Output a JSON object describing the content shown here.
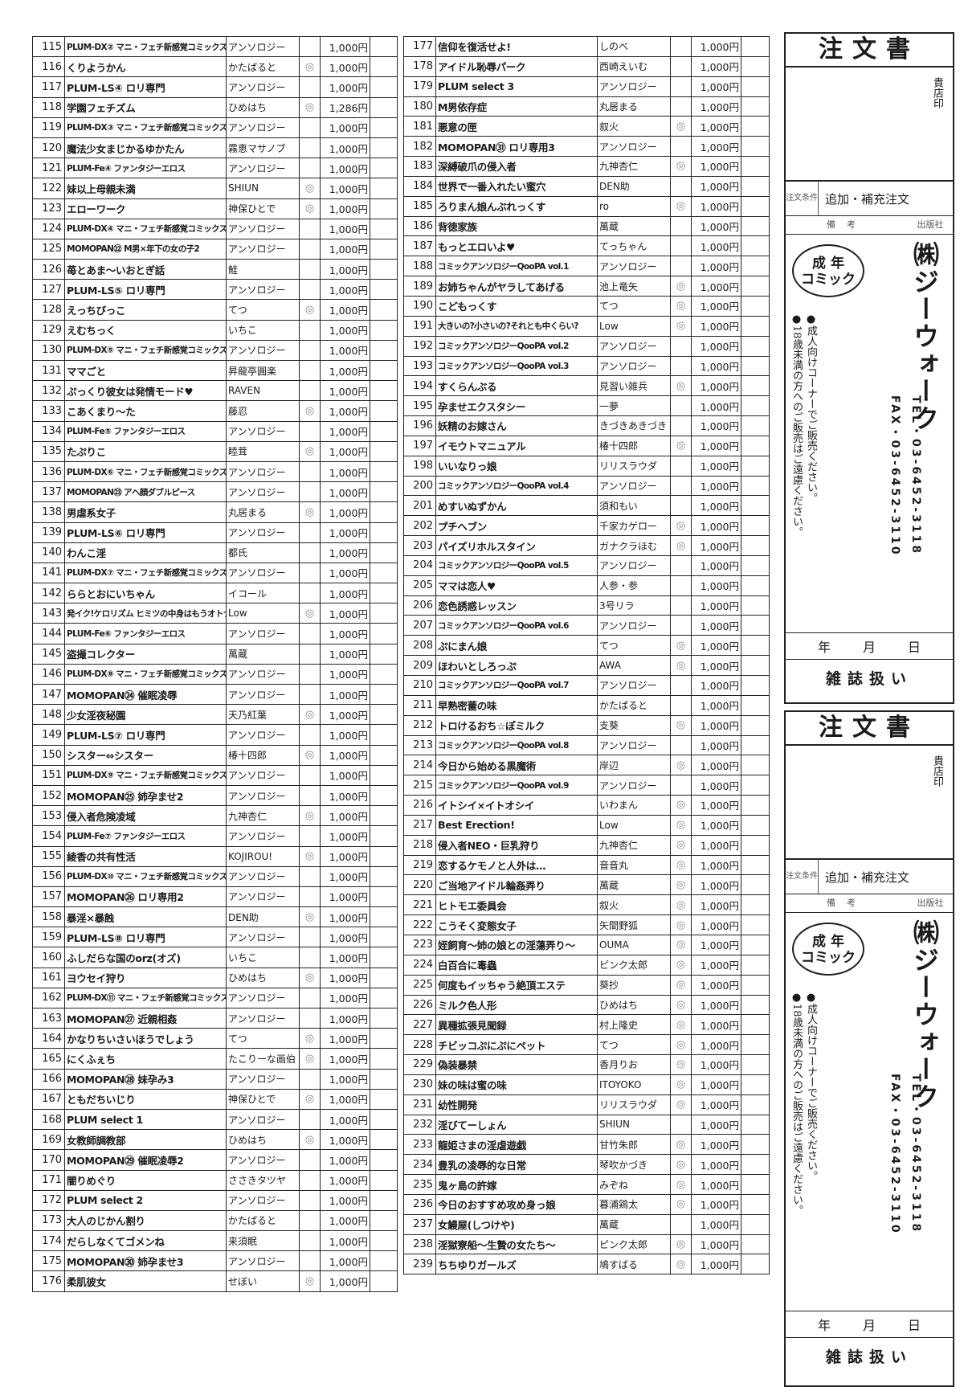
{
  "left_table": [
    [
      "115",
      "PLUM-DX② マニ・フェチ新感覚コミックス",
      "アンソロジー",
      "",
      "1,000円"
    ],
    [
      "116",
      "くりようかん",
      "かたぱると",
      "◎",
      "1,000円"
    ],
    [
      "117",
      "PLUM-LS④ ロリ専門",
      "アンソロジー",
      "",
      "1,000円"
    ],
    [
      "118",
      "学園フェチズム",
      "ひめはち",
      "◎",
      "1,286円"
    ],
    [
      "119",
      "PLUM-DX③ マニ・フェチ新感覚コミックス",
      "アンソロジー",
      "",
      "1,000円"
    ],
    [
      "120",
      "魔法少女まじかるゆかたん",
      "霧恵マサノブ",
      "",
      "1,000円"
    ],
    [
      "121",
      "PLUM-Fe④ ファンタジーエロス",
      "アンソロジー",
      "",
      "1,000円"
    ],
    [
      "122",
      "妹以上母親未満",
      "SHIUN",
      "◎",
      "1,000円"
    ],
    [
      "123",
      "エローワーク",
      "神保ひとで",
      "◎",
      "1,000円"
    ],
    [
      "124",
      "PLUM-DX④ マニ・フェチ新感覚コミックス",
      "アンソロジー",
      "",
      "1,000円"
    ],
    [
      "125",
      "MOMOPAN㉒ M男×年下の女の子2",
      "アンソロジー",
      "",
      "1,000円"
    ],
    [
      "126",
      "苺とあま～いおとぎ話",
      "鮭",
      "",
      "1,000円"
    ],
    [
      "127",
      "PLUM-LS⑤ ロリ専門",
      "アンソロジー",
      "",
      "1,000円"
    ],
    [
      "128",
      "えっちびっこ",
      "てつ",
      "◎",
      "1,000円"
    ],
    [
      "129",
      "えむちっく",
      "いちこ",
      "",
      "1,000円"
    ],
    [
      "130",
      "PLUM-DX⑤ マニ・フェチ新感覚コミックス",
      "アンソロジー",
      "",
      "1,000円"
    ],
    [
      "131",
      "ママごと",
      "昇龍亭圓楽",
      "",
      "1,000円"
    ],
    [
      "132",
      "ぷっくり彼女は発情モード♥",
      "RAVEN",
      "",
      "1,000円"
    ],
    [
      "133",
      "こあくまり～た",
      "藤忍",
      "◎",
      "1,000円"
    ],
    [
      "134",
      "PLUM-Fe⑤ ファンタジーエロス",
      "アンソロジー",
      "",
      "1,000円"
    ],
    [
      "135",
      "たぷりこ",
      "睦茸",
      "◎",
      "1,000円"
    ],
    [
      "136",
      "PLUM-DX⑥ マニ・フェチ新感覚コミックス",
      "アンソロジー",
      "",
      "1,000円"
    ],
    [
      "137",
      "MOMOPAN㉓ アヘ顔ダブルピース",
      "アンソロジー",
      "",
      "1,000円"
    ],
    [
      "138",
      "男虐系女子",
      "丸居まる",
      "◎",
      "1,000円"
    ],
    [
      "139",
      "PLUM-LS⑥ ロリ専門",
      "アンソロジー",
      "",
      "1,000円"
    ],
    [
      "140",
      "わんこ淫",
      "都氏",
      "",
      "1,000円"
    ],
    [
      "141",
      "PLUM-DX⑦ マニ・フェチ新感覚コミックス",
      "アンソロジー",
      "",
      "1,000円"
    ],
    [
      "142",
      "ららとおにいちゃん",
      "イコール",
      "",
      "1,000円"
    ],
    [
      "143",
      "発イク!ケロリズム ヒミツの中身はもうオトナ",
      "Low",
      "◎",
      "1,000円"
    ],
    [
      "144",
      "PLUM-Fe⑥ ファンタジーエロス",
      "アンソロジー",
      "",
      "1,000円"
    ],
    [
      "145",
      "盗撮コレクター",
      "萬蔵",
      "",
      "1,000円"
    ],
    [
      "146",
      "PLUM-DX⑧ マニ・フェチ新感覚コミックス",
      "アンソロジー",
      "",
      "1,000円"
    ],
    [
      "147",
      "MOMOPAN㉔ 催眠凌辱",
      "アンソロジー",
      "",
      "1,000円"
    ],
    [
      "148",
      "少女淫夜秘園",
      "天乃紅葉",
      "◎",
      "1,000円"
    ],
    [
      "149",
      "PLUM-LS⑦ ロリ専門",
      "アンソロジー",
      "",
      "1,000円"
    ],
    [
      "150",
      "シスター⇔シスター",
      "椿十四郎",
      "◎",
      "1,000円"
    ],
    [
      "151",
      "PLUM-DX⑨ マニ・フェチ新感覚コミックス",
      "アンソロジー",
      "",
      "1,000円"
    ],
    [
      "152",
      "MOMOPAN㉕ 姉孕ませ2",
      "アンソロジー",
      "",
      "1,000円"
    ],
    [
      "153",
      "侵入者危険凌域",
      "九神杏仁",
      "◎",
      "1,000円"
    ],
    [
      "154",
      "PLUM-Fe⑦ ファンタジーエロス",
      "アンソロジー",
      "",
      "1,000円"
    ],
    [
      "155",
      "綾香の共有性活",
      "KOJIROU!",
      "◎",
      "1,000円"
    ],
    [
      "156",
      "PLUM-DX⑩ マニ・フェチ新感覚コミックス",
      "アンソロジー",
      "",
      "1,000円"
    ],
    [
      "157",
      "MOMOPAN㉖ ロリ専用2",
      "アンソロジー",
      "",
      "1,000円"
    ],
    [
      "158",
      "暴淫×暴蝕",
      "DEN助",
      "◎",
      "1,000円"
    ],
    [
      "159",
      "PLUM-LS⑧ ロリ専門",
      "アンソロジー",
      "",
      "1,000円"
    ],
    [
      "160",
      "ふしだらな国のorz(オズ)",
      "いちこ",
      "",
      "1,000円"
    ],
    [
      "161",
      "ヨウセイ狩り",
      "ひめはち",
      "◎",
      "1,000円"
    ],
    [
      "162",
      "PLUM-DX⑪ マニ・フェチ新感覚コミックス",
      "アンソロジー",
      "",
      "1,000円"
    ],
    [
      "163",
      "MOMOPAN㉗ 近親相姦",
      "アンソロジー",
      "",
      "1,000円"
    ],
    [
      "164",
      "かなりちいさいほうでしょう",
      "てつ",
      "◎",
      "1,000円"
    ],
    [
      "165",
      "にくふぇち",
      "たこりーな画伯",
      "◎",
      "1,000円"
    ],
    [
      "166",
      "MOMOPAN㉘ 妹孕み3",
      "アンソロジー",
      "",
      "1,000円"
    ],
    [
      "167",
      "ともだちいじり",
      "神保ひとで",
      "◎",
      "1,000円"
    ],
    [
      "168",
      "PLUM select 1",
      "アンソロジー",
      "",
      "1,000円"
    ],
    [
      "169",
      "女教師調教部",
      "ひめはち",
      "◎",
      "1,000円"
    ],
    [
      "170",
      "MOMOPAN㉙ 催眠凌辱2",
      "アンソロジー",
      "",
      "1,000円"
    ],
    [
      "171",
      "闇りめぐり",
      "ささきタツヤ",
      "",
      "1,000円"
    ],
    [
      "172",
      "PLUM select 2",
      "アンソロジー",
      "",
      "1,000円"
    ],
    [
      "173",
      "大人のじかん割り",
      "かたぱると",
      "",
      "1,000円"
    ],
    [
      "174",
      "だらしなくてゴメンね",
      "来須眠",
      "",
      "1,000円"
    ],
    [
      "175",
      "MOMOPAN㉚ 姉孕ませ3",
      "アンソロジー",
      "",
      "1,000円"
    ],
    [
      "176",
      "柔肌彼女",
      "せぼい",
      "◎",
      "1,000円"
    ]
  ],
  "middle_table": [
    [
      "177",
      "信仰を復活せよ!",
      "しのべ",
      "",
      "1,000円"
    ],
    [
      "178",
      "アイドル恥辱パーク",
      "西崎えいむ",
      "",
      "1,000円"
    ],
    [
      "179",
      "PLUM select 3",
      "アンソロジー",
      "",
      "1,000円"
    ],
    [
      "180",
      "M男依存症",
      "丸居まる",
      "",
      "1,000円"
    ],
    [
      "181",
      "悪意の匣",
      "叙火",
      "◎",
      "1,000円"
    ],
    [
      "182",
      "MOMOPAN㉛ ロリ専用3",
      "アンソロジー",
      "",
      "1,000円"
    ],
    [
      "183",
      "深縛破爪の侵入者",
      "九神杏仁",
      "◎",
      "1,000円"
    ],
    [
      "184",
      "世界で一番入れたい蜜穴",
      "DEN助",
      "",
      "1,000円"
    ],
    [
      "185",
      "ろりまん娘んぶれっくす",
      "ro",
      "◎",
      "1,000円"
    ],
    [
      "186",
      "背徳家族",
      "萬蔵",
      "",
      "1,000円"
    ],
    [
      "187",
      "もっとエロいよ♥",
      "てっちゃん",
      "",
      "1,000円"
    ],
    [
      "188",
      "コミックアンソロジーQooPA vol.1",
      "アンソロジー",
      "",
      "1,000円"
    ],
    [
      "189",
      "お姉ちゃんがヤラしてあげる",
      "池上竜矢",
      "◎",
      "1,000円"
    ],
    [
      "190",
      "こどもっくす",
      "てつ",
      "◎",
      "1,000円"
    ],
    [
      "191",
      "大きいの?小さいの?それとも中くらい?",
      "Low",
      "◎",
      "1,000円"
    ],
    [
      "192",
      "コミックアンソロジーQooPA vol.2",
      "アンソロジー",
      "",
      "1,000円"
    ],
    [
      "193",
      "コミックアンソロジーQooPA vol.3",
      "アンソロジー",
      "",
      "1,000円"
    ],
    [
      "194",
      "すくらんぶる",
      "見習い雑兵",
      "◎",
      "1,000円"
    ],
    [
      "195",
      "孕ませエクスタシー",
      "一夢",
      "",
      "1,000円"
    ],
    [
      "196",
      "妖精のお嫁さん",
      "きづきあきづき",
      "",
      "1,000円"
    ],
    [
      "197",
      "イモウトマニュアル",
      "椿十四郎",
      "◎",
      "1,000円"
    ],
    [
      "198",
      "いいなりっ娘",
      "リリスラウダ",
      "",
      "1,000円"
    ],
    [
      "200",
      "コミックアンソロジーQooPA vol.4",
      "アンソロジー",
      "",
      "1,000円"
    ],
    [
      "201",
      "めすいぬずかん",
      "須和もい",
      "",
      "1,000円"
    ],
    [
      "202",
      "プチヘブン",
      "千家カゲロー",
      "◎",
      "1,000円"
    ],
    [
      "203",
      "パイズリホルスタイン",
      "ガナクラほむ",
      "◎",
      "1,000円"
    ],
    [
      "204",
      "コミックアンソロジーQooPA vol.5",
      "アンソロジー",
      "",
      "1,000円"
    ],
    [
      "205",
      "ママは恋人♥",
      "人参・参",
      "",
      "1,000円"
    ],
    [
      "206",
      "恋色誘惑レッスン",
      "3号リラ",
      "",
      "1,000円"
    ],
    [
      "207",
      "コミックアンソロジーQooPA vol.6",
      "アンソロジー",
      "",
      "1,000円"
    ],
    [
      "208",
      "ぷにまん娘",
      "てつ",
      "◎",
      "1,000円"
    ],
    [
      "209",
      "ほわいとしろっぷ",
      "AWA",
      "◎",
      "1,000円"
    ],
    [
      "210",
      "コミックアンソロジーQooPA vol.7",
      "アンソロジー",
      "",
      "1,000円"
    ],
    [
      "211",
      "早熟密蕾の味",
      "かたぱると",
      "",
      "1,000円"
    ],
    [
      "212",
      "トロけるおち☆ぽミルク",
      "支葵",
      "◎",
      "1,000円"
    ],
    [
      "213",
      "コミックアンソロジーQooPA vol.8",
      "アンソロジー",
      "",
      "1,000円"
    ],
    [
      "214",
      "今日から始める黒魔術",
      "岸辺",
      "◎",
      "1,000円"
    ],
    [
      "215",
      "コミックアンソロジーQooPA vol.9",
      "アンソロジー",
      "",
      "1,000円"
    ],
    [
      "216",
      "イトシイ×イトオシイ",
      "いわまん",
      "◎",
      "1,000円"
    ],
    [
      "217",
      "Best Erection!",
      "Low",
      "◎",
      "1,000円"
    ],
    [
      "218",
      "侵入者NEO・巨乳狩り",
      "九神杏仁",
      "◎",
      "1,000円"
    ],
    [
      "219",
      "恋するケモノと人外は…",
      "音音丸",
      "◎",
      "1,000円"
    ],
    [
      "220",
      "ご当地アイドル輪姦弄り",
      "萬蔵",
      "◎",
      "1,000円"
    ],
    [
      "221",
      "ヒトモエ委員会",
      "叙火",
      "◎",
      "1,000円"
    ],
    [
      "222",
      "こうそく変態女子",
      "矢間野狐",
      "◎",
      "1,000円"
    ],
    [
      "223",
      "姪飼育～姉の娘との淫蕩弄り～",
      "OUMA",
      "◎",
      "1,000円"
    ],
    [
      "224",
      "白百合に毒蟲",
      "ピンク太郎",
      "◎",
      "1,000円"
    ],
    [
      "225",
      "何度もイッちゃう絶頂エステ",
      "葵抄",
      "◎",
      "1,000円"
    ],
    [
      "226",
      "ミルク色人形",
      "ひめはち",
      "◎",
      "1,000円"
    ],
    [
      "227",
      "異種拡張見聞録",
      "村上隆史",
      "◎",
      "1,000円"
    ],
    [
      "228",
      "チビッコぷにぷにペット",
      "てつ",
      "◎",
      "1,000円"
    ],
    [
      "229",
      "偽装暴禁",
      "香月りお",
      "◎",
      "1,000円"
    ],
    [
      "230",
      "妹の味は蜜の味",
      "ITOYOKO",
      "◎",
      "1,000円"
    ],
    [
      "231",
      "幼性開発",
      "リリスラウダ",
      "◎",
      "1,000円"
    ],
    [
      "232",
      "淫びてーしょん",
      "SHIUN",
      "",
      "1,000円"
    ],
    [
      "233",
      "龍姫さまの淫虐遊戯",
      "甘竹朱郎",
      "◎",
      "1,000円"
    ],
    [
      "234",
      "豊乳の凌辱的な日常",
      "琴吹かづき",
      "◎",
      "1,000円"
    ],
    [
      "235",
      "鬼ヶ島の許嫁",
      "みぞね",
      "◎",
      "1,000円"
    ],
    [
      "236",
      "今日のおすすめ攻め身っ娘",
      "暮浦鶏太",
      "◎",
      "1,000円"
    ],
    [
      "237",
      "女鰻屋(しつけや)",
      "萬蔵",
      "",
      "1,000円"
    ],
    [
      "238",
      "淫獄寮船～生贄の女たち～",
      "ピンク太郎",
      "◎",
      "1,000円"
    ],
    [
      "239",
      "ちちゆりガールズ",
      "鳩すばる",
      "◎",
      "1,000円"
    ]
  ],
  "order_form": {
    "title": "注文書",
    "stamp_label": "貴店印",
    "condition_label": "注文条件",
    "condition_value": "追加・補充注文",
    "remarks_label": "備考",
    "publisher_label": "出版社",
    "badge": "成年コミック",
    "badge_line1": "成 年",
    "badge_line2": "コミック",
    "note1": "●成人向けコーナーでご販売ください。",
    "note2": "●18歳未満の方へのご販売はご遠慮ください。",
    "company": "㈱ジーウォーク",
    "tel": "TEL・03-6452-3118",
    "fax": "FAX・03-6452-3110",
    "year": "年",
    "month": "月",
    "day": "日",
    "magazine": "雑誌扱い"
  }
}
